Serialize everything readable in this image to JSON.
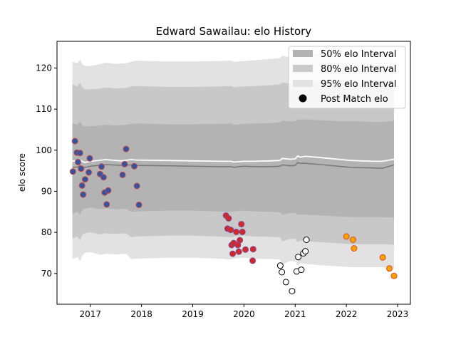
{
  "chart_data": {
    "type": "scatter",
    "title": "Edward Sawailau: elo History",
    "xlabel": "",
    "ylabel": "elo score",
    "xlim": [
      2016.35,
      2023.25
    ],
    "ylim": [
      62.5,
      126.5
    ],
    "x_ticks": [
      2017,
      2018,
      2019,
      2020,
      2021,
      2022,
      2023
    ],
    "y_ticks": [
      70,
      80,
      90,
      100,
      110,
      120
    ],
    "grid": false,
    "legend_position": "top-right",
    "legend": [
      {
        "label": "50% elo Interval",
        "kind": "band",
        "color": "#b3b3b3"
      },
      {
        "label": "80% elo Interval",
        "kind": "band",
        "color": "#c8c8c8"
      },
      {
        "label": "95% elo Interval",
        "kind": "band",
        "color": "#e2e2e2"
      },
      {
        "label": "Post Match elo",
        "kind": "marker",
        "color": "#000000"
      }
    ],
    "bands": [
      {
        "name": "95% elo Interval",
        "color": "#e2e2e2",
        "x": [
          2016.65,
          2016.75,
          2016.8,
          2016.85,
          2016.9,
          2017.0,
          2017.2,
          2017.3,
          2017.5,
          2017.7,
          2017.8,
          2017.9,
          2018.5,
          2019.0,
          2019.5,
          2019.75,
          2019.8,
          2019.9,
          2020.0,
          2020.2,
          2020.5,
          2020.7,
          2020.75,
          2020.9,
          2021.0,
          2021.05,
          2021.1,
          2021.2,
          2021.5,
          2022.0,
          2022.1,
          2022.5,
          2022.7,
          2022.9,
          2022.93
        ],
        "upper": [
          121.5,
          121.2,
          122.1,
          120.8,
          120.5,
          120.5,
          121.0,
          121.3,
          121.0,
          121.2,
          121.5,
          121.8,
          121.6,
          121.6,
          121.7,
          121.8,
          121.5,
          121.6,
          121.7,
          121.9,
          122.2,
          122.4,
          123.0,
          122.6,
          122.8,
          123.8,
          123.4,
          123.6,
          123.4,
          123.0,
          123.2,
          123.0,
          123.0,
          123.2,
          123.5
        ],
        "lower": [
          73.5,
          74.0,
          73.0,
          74.5,
          75.0,
          75.2,
          74.5,
          74.8,
          74.6,
          74.8,
          73.5,
          73.6,
          73.8,
          73.8,
          73.6,
          73.4,
          73.6,
          73.7,
          73.8,
          73.6,
          73.5,
          73.4,
          72.2,
          73.0,
          73.0,
          72.0,
          72.5,
          72.3,
          72.0,
          71.6,
          71.5,
          71.5,
          71.5,
          71.4,
          71.2
        ]
      },
      {
        "name": "80% elo Interval",
        "color": "#c8c8c8",
        "x": [
          2016.65,
          2016.75,
          2016.8,
          2016.85,
          2016.9,
          2017.0,
          2017.2,
          2017.3,
          2017.5,
          2017.7,
          2017.8,
          2017.9,
          2018.5,
          2019.0,
          2019.5,
          2019.75,
          2019.8,
          2019.9,
          2020.0,
          2020.2,
          2020.5,
          2020.7,
          2020.75,
          2020.9,
          2021.0,
          2021.05,
          2021.1,
          2021.2,
          2021.5,
          2022.0,
          2022.1,
          2022.5,
          2022.7,
          2022.9,
          2022.93
        ],
        "upper": [
          116.0,
          115.5,
          116.5,
          115.2,
          114.8,
          114.8,
          115.0,
          115.3,
          115.0,
          115.2,
          115.5,
          115.6,
          115.4,
          115.4,
          115.5,
          115.6,
          115.3,
          115.4,
          115.5,
          115.6,
          115.8,
          116.0,
          116.5,
          116.2,
          116.3,
          117.0,
          116.8,
          116.9,
          116.7,
          116.4,
          116.5,
          116.3,
          116.3,
          116.5,
          116.8
        ],
        "lower": [
          78.5,
          79.0,
          78.0,
          79.5,
          79.8,
          80.0,
          79.5,
          79.8,
          79.6,
          79.8,
          78.8,
          79.0,
          79.2,
          79.2,
          79.0,
          78.8,
          79.0,
          79.1,
          79.2,
          79.0,
          78.9,
          78.8,
          77.8,
          78.4,
          78.4,
          77.6,
          78.0,
          77.8,
          77.6,
          77.2,
          77.1,
          77.1,
          77.1,
          77.0,
          76.8
        ]
      },
      {
        "name": "50% elo Interval",
        "color": "#b3b3b3",
        "x": [
          2016.65,
          2016.75,
          2016.8,
          2016.85,
          2016.9,
          2017.0,
          2017.2,
          2017.3,
          2017.5,
          2017.7,
          2017.8,
          2017.9,
          2018.5,
          2019.0,
          2019.5,
          2019.75,
          2019.8,
          2019.9,
          2020.0,
          2020.2,
          2020.5,
          2020.7,
          2020.75,
          2020.9,
          2021.0,
          2021.05,
          2021.1,
          2021.2,
          2021.5,
          2022.0,
          2022.1,
          2022.5,
          2022.7,
          2022.9,
          2022.93
        ],
        "upper": [
          106.5,
          106.2,
          107.0,
          106.0,
          105.8,
          105.8,
          106.0,
          106.2,
          106.0,
          106.2,
          106.4,
          106.5,
          106.3,
          106.3,
          106.4,
          106.5,
          106.2,
          106.3,
          106.4,
          106.5,
          106.6,
          106.8,
          107.2,
          107.0,
          107.0,
          107.6,
          107.4,
          107.5,
          107.3,
          107.0,
          107.1,
          106.9,
          106.9,
          107.1,
          107.3
        ],
        "lower": [
          84.5,
          85.0,
          84.2,
          85.5,
          85.8,
          86.0,
          85.6,
          85.8,
          85.6,
          85.8,
          85.0,
          85.1,
          85.3,
          85.3,
          85.1,
          85.0,
          85.1,
          85.2,
          85.3,
          85.1,
          85.0,
          84.9,
          84.3,
          84.7,
          84.7,
          84.2,
          84.4,
          84.3,
          84.1,
          83.8,
          83.7,
          83.7,
          83.7,
          83.6,
          83.4
        ]
      }
    ],
    "mean_line": {
      "color": "#ffffff",
      "x": [
        2016.65,
        2016.75,
        2016.8,
        2016.85,
        2016.9,
        2017.0,
        2017.3,
        2017.6,
        2017.8,
        2017.9,
        2018.5,
        2019.0,
        2019.5,
        2019.75,
        2019.8,
        2019.9,
        2020.0,
        2020.2,
        2020.5,
        2020.7,
        2020.75,
        2020.9,
        2021.0,
        2021.05,
        2021.1,
        2021.2,
        2021.5,
        2022.0,
        2022.1,
        2022.5,
        2022.7,
        2022.93
      ],
      "y": [
        97.4,
        97.3,
        97.6,
        97.2,
        97.0,
        97.3,
        97.7,
        97.4,
        97.7,
        97.6,
        97.5,
        97.4,
        97.3,
        97.3,
        97.1,
        97.2,
        97.3,
        97.3,
        97.4,
        97.5,
        98.0,
        97.8,
        97.9,
        98.6,
        98.3,
        98.5,
        98.2,
        97.6,
        97.5,
        97.3,
        97.3,
        97.8
      ]
    },
    "median_line": {
      "color": "#7a7a7a",
      "x": [
        2016.65,
        2016.75,
        2016.8,
        2016.85,
        2016.9,
        2017.0,
        2017.3,
        2017.6,
        2017.8,
        2017.9,
        2018.5,
        2019.0,
        2019.5,
        2019.75,
        2019.8,
        2019.9,
        2020.0,
        2020.2,
        2020.5,
        2020.7,
        2020.75,
        2020.9,
        2021.0,
        2021.05,
        2021.1,
        2021.2,
        2021.5,
        2022.0,
        2022.1,
        2022.5,
        2022.7,
        2022.93
      ],
      "y": [
        95.8,
        95.9,
        96.3,
        95.8,
        95.8,
        96.1,
        96.5,
        96.3,
        96.4,
        96.3,
        96.2,
        96.1,
        96.0,
        96.0,
        95.8,
        96.0,
        96.1,
        96.0,
        96.0,
        96.1,
        96.4,
        96.2,
        96.3,
        97.0,
        96.8,
        96.8,
        96.5,
        95.9,
        95.8,
        95.7,
        95.6,
        96.4
      ]
    },
    "series": [
      {
        "fill": "#2f55a4",
        "edge": "#c9473f",
        "x": [
          2016.66,
          2016.7,
          2016.74,
          2016.76,
          2016.8,
          2016.82,
          2016.84,
          2016.86,
          2016.9,
          2016.97,
          2016.99,
          2017.19,
          2017.22,
          2017.26,
          2017.28,
          2017.32,
          2017.35,
          2017.63,
          2017.67,
          2017.7,
          2017.86,
          2017.91,
          2017.95
        ],
        "y": [
          94.8,
          102.2,
          99.4,
          97.1,
          99.3,
          95.5,
          91.4,
          89.2,
          92.9,
          94.6,
          98.0,
          94.2,
          96.0,
          93.4,
          89.7,
          86.8,
          90.2,
          94.0,
          96.6,
          100.3,
          96.1,
          91.3,
          86.7
        ]
      },
      {
        "fill": "#d62728",
        "edge": "#7a4a9a",
        "x": [
          2019.65,
          2019.68,
          2019.7,
          2019.74,
          2019.76,
          2019.78,
          2019.8,
          2019.85,
          2019.88,
          2019.9,
          2019.92,
          2019.95,
          2019.97,
          2020.03,
          2020.17,
          2020.18
        ],
        "y": [
          84.1,
          80.9,
          83.4,
          80.6,
          76.9,
          74.8,
          77.4,
          80.1,
          76.9,
          75.3,
          78.1,
          82.0,
          80.1,
          75.8,
          73.1,
          75.9
        ]
      },
      {
        "fill": "#ffffff",
        "edge": "#000000",
        "x": [
          2020.71,
          2020.74,
          2020.82,
          2020.94,
          2021.03,
          2021.06,
          2021.12,
          2021.16,
          2021.2,
          2021.22
        ],
        "y": [
          71.9,
          70.3,
          67.9,
          65.7,
          70.5,
          74.0,
          70.9,
          74.9,
          75.4,
          78.2
        ]
      },
      {
        "fill": "#f4a300",
        "edge": "#e04a2a",
        "x": [
          2022.0,
          2022.13,
          2022.15,
          2022.71,
          2022.84,
          2022.93
        ],
        "y": [
          79.0,
          78.2,
          76.1,
          73.9,
          71.2,
          69.4
        ]
      }
    ]
  }
}
